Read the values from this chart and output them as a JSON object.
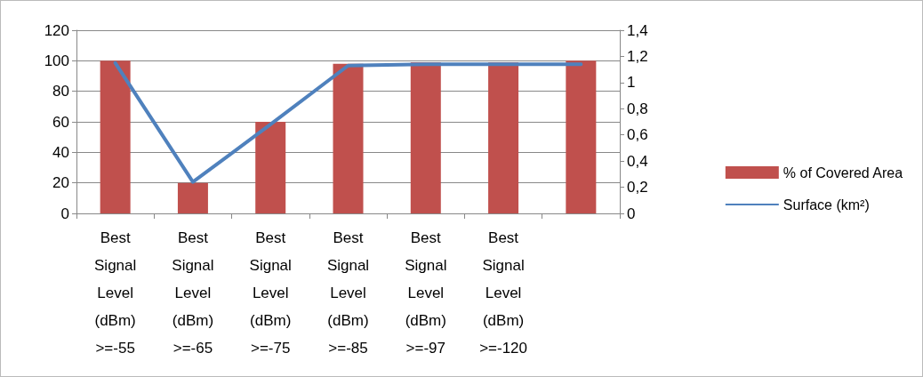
{
  "chart_data": {
    "type": "bar",
    "categories": [
      "Best Signal Level (dBm) >=-55",
      "Best Signal Level (dBm) >=-65",
      "Best Signal Level (dBm) >=-75",
      "Best Signal Level (dBm) >=-85",
      "Best Signal Level (dBm) >=-97",
      "Best Signal Level (dBm) >=-120",
      null
    ],
    "series": [
      {
        "name": "% of Covered Area",
        "color": "#c0504d",
        "values": [
          100,
          20,
          60,
          98,
          99,
          99,
          100
        ]
      },
      {
        "name": "Surface (km²)",
        "type": "line",
        "axis": "y2",
        "color": "#4f81bd",
        "values": [
          1.15,
          0.24,
          0.68,
          1.13,
          1.14,
          1.14,
          1.14
        ]
      }
    ],
    "ylim": [
      0,
      120
    ],
    "yticks": [
      0,
      20,
      40,
      60,
      80,
      100,
      120
    ],
    "y2lim": [
      0,
      1.4
    ],
    "y2ticks": [
      {
        "value": 0,
        "label": "0"
      },
      {
        "value": 0.2,
        "label": "0,2"
      },
      {
        "value": 0.4,
        "label": "0,4"
      },
      {
        "value": 0.6,
        "label": "0,6"
      },
      {
        "value": 0.8,
        "label": "0,8"
      },
      {
        "value": 1,
        "label": "1"
      },
      {
        "value": 1.2,
        "label": "1,2"
      },
      {
        "value": 1.4,
        "label": "1,4"
      }
    ],
    "grid": "y",
    "legend": "right",
    "marker": "none"
  }
}
